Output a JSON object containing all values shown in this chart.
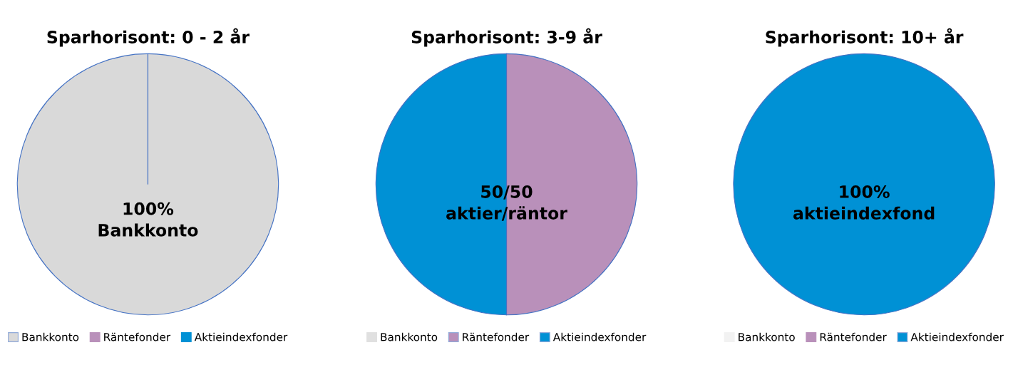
{
  "chart_data": [
    {
      "type": "pie",
      "title": "Sparhorisont: 0 - 2 år",
      "categories": [
        "Bankkonto",
        "Räntefonder",
        "Aktieindexfonder"
      ],
      "values": [
        100,
        0,
        0
      ],
      "colors": [
        "#d9d9d9",
        "#b990ba",
        "#0091d5"
      ],
      "annotations": [
        "100%\nBankkonto"
      ],
      "legend": "bottom"
    },
    {
      "type": "pie",
      "title": "Sparhorisont: 3-9 år",
      "categories": [
        "Bankkonto",
        "Räntefonder",
        "Aktieindexfonder"
      ],
      "values": [
        0,
        50,
        50
      ],
      "colors": [
        "#e0e0e0",
        "#b990ba",
        "#0091d5"
      ],
      "annotations": [
        "50/50\naktier/räntor"
      ],
      "legend": "bottom"
    },
    {
      "type": "pie",
      "title": "Sparhorisont: 10+ år",
      "categories": [
        "Bankkonto",
        "Räntefonder",
        "Aktieindexfonder"
      ],
      "values": [
        0,
        0,
        100
      ],
      "colors": [
        "#f2f2f2",
        "#b990ba",
        "#0091d5"
      ],
      "annotations": [
        "100%\naktieindexfond"
      ],
      "legend": "bottom"
    }
  ]
}
